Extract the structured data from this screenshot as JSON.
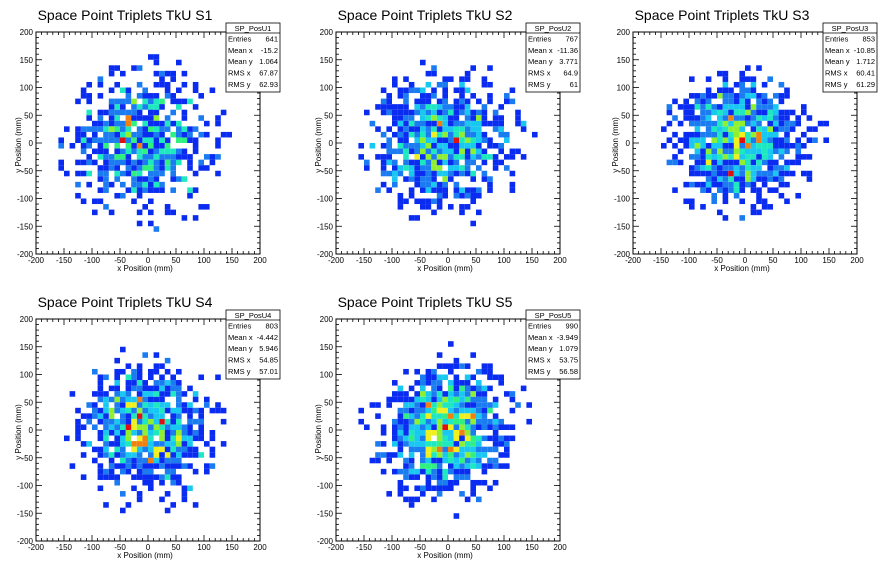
{
  "chart_data": [
    {
      "type": "heatmap",
      "title": "Space Point Triplets TkU S1",
      "xlabel": "x Position (mm)",
      "ylabel": "y Position (mm)",
      "xlim": [
        -200,
        200
      ],
      "ylim": [
        -200,
        200
      ],
      "xticks": [
        "-200",
        "-150",
        "-100",
        "-50",
        "0",
        "50",
        "100",
        "150",
        "200"
      ],
      "yticks": [
        "-200",
        "-150",
        "-100",
        "-50",
        "0",
        "50",
        "100",
        "150",
        "200"
      ],
      "bin_size_mm": 10,
      "stats": {
        "name": "SP_PosU1",
        "rows": [
          [
            "Entries",
            "641"
          ],
          [
            "Mean x",
            "-15.2"
          ],
          [
            "Mean y",
            "1.064"
          ],
          [
            "RMS x",
            "67.87"
          ],
          [
            "RMS y",
            "62.93"
          ]
        ]
      },
      "distribution": {
        "entries": 641,
        "mean_x": -15.2,
        "mean_y": 1.064,
        "rms_x": 67.87,
        "rms_y": 62.93,
        "radius_mm": 160
      }
    },
    {
      "type": "heatmap",
      "title": "Space Point Triplets TkU S2",
      "xlabel": "x Position (mm)",
      "ylabel": "y Position (mm)",
      "xlim": [
        -200,
        200
      ],
      "ylim": [
        -200,
        200
      ],
      "xticks": [
        "-200",
        "-150",
        "-100",
        "-50",
        "0",
        "50",
        "100",
        "150",
        "200"
      ],
      "yticks": [
        "-200",
        "-150",
        "-100",
        "-50",
        "0",
        "50",
        "100",
        "150",
        "200"
      ],
      "bin_size_mm": 10,
      "stats": {
        "name": "SP_PosU2",
        "rows": [
          [
            "Entries",
            "767"
          ],
          [
            "Mean x",
            "-11.36"
          ],
          [
            "Mean y",
            "3.771"
          ],
          [
            "RMS x",
            "64.9"
          ],
          [
            "RMS y",
            "61"
          ]
        ]
      },
      "distribution": {
        "entries": 767,
        "mean_x": -11.36,
        "mean_y": 3.771,
        "rms_x": 64.9,
        "rms_y": 61,
        "radius_mm": 160
      }
    },
    {
      "type": "heatmap",
      "title": "Space Point Triplets TkU S3",
      "xlabel": "x Position (mm)",
      "ylabel": "y Position (mm)",
      "xlim": [
        -200,
        200
      ],
      "ylim": [
        -200,
        200
      ],
      "xticks": [
        "-200",
        "-150",
        "-100",
        "-50",
        "0",
        "50",
        "100",
        "150",
        "200"
      ],
      "yticks": [
        "-200",
        "-150",
        "-100",
        "-50",
        "0",
        "50",
        "100",
        "150",
        "200"
      ],
      "bin_size_mm": 10,
      "stats": {
        "name": "SP_PosU3",
        "rows": [
          [
            "Entries",
            "853"
          ],
          [
            "Mean x",
            "-10.85"
          ],
          [
            "Mean y",
            "1.712"
          ],
          [
            "RMS x",
            "60.41"
          ],
          [
            "RMS y",
            "61.29"
          ]
        ]
      },
      "distribution": {
        "entries": 853,
        "mean_x": -10.85,
        "mean_y": 1.712,
        "rms_x": 60.41,
        "rms_y": 61.29,
        "radius_mm": 150
      }
    },
    {
      "type": "heatmap",
      "title": "Space Point Triplets TkU S4",
      "xlabel": "x Position (mm)",
      "ylabel": "y Position (mm)",
      "xlim": [
        -200,
        200
      ],
      "ylim": [
        -200,
        200
      ],
      "xticks": [
        "-200",
        "-150",
        "-100",
        "-50",
        "0",
        "50",
        "100",
        "150",
        "200"
      ],
      "yticks": [
        "-200",
        "-150",
        "-100",
        "-50",
        "0",
        "50",
        "100",
        "150",
        "200"
      ],
      "bin_size_mm": 10,
      "stats": {
        "name": "SP_PosU4",
        "rows": [
          [
            "Entries",
            "803"
          ],
          [
            "Mean x",
            "-4.442"
          ],
          [
            "Mean y",
            "5.946"
          ],
          [
            "RMS x",
            "54.85"
          ],
          [
            "RMS y",
            "57.01"
          ]
        ]
      },
      "distribution": {
        "entries": 803,
        "mean_x": -4.442,
        "mean_y": 5.946,
        "rms_x": 54.85,
        "rms_y": 57.01,
        "radius_mm": 160
      }
    },
    {
      "type": "heatmap",
      "title": "Space Point Triplets TkU S5",
      "xlabel": "x Position (mm)",
      "ylabel": "y Position (mm)",
      "xlim": [
        -200,
        200
      ],
      "ylim": [
        -200,
        200
      ],
      "xticks": [
        "-200",
        "-150",
        "-100",
        "-50",
        "0",
        "50",
        "100",
        "150",
        "200"
      ],
      "yticks": [
        "-200",
        "-150",
        "-100",
        "-50",
        "0",
        "50",
        "100",
        "150",
        "200"
      ],
      "bin_size_mm": 10,
      "stats": {
        "name": "SP_PosU5",
        "rows": [
          [
            "Entries",
            "990"
          ],
          [
            "Mean x",
            "-3.949"
          ],
          [
            "Mean y",
            "1.079"
          ],
          [
            "RMS x",
            "53.75"
          ],
          [
            "RMS y",
            "56.58"
          ]
        ]
      },
      "distribution": {
        "entries": 990,
        "mean_x": -3.949,
        "mean_y": 1.079,
        "rms_x": 53.75,
        "rms_y": 56.58,
        "radius_mm": 160
      }
    }
  ],
  "colors": {
    "background": "#ffffff",
    "frame": "#000000",
    "palette": [
      "#0a2cf0",
      "#1a7cf0",
      "#19c8f0",
      "#1de8c0",
      "#30f080",
      "#90f030",
      "#f0f020",
      "#f08010",
      "#e01010"
    ]
  }
}
